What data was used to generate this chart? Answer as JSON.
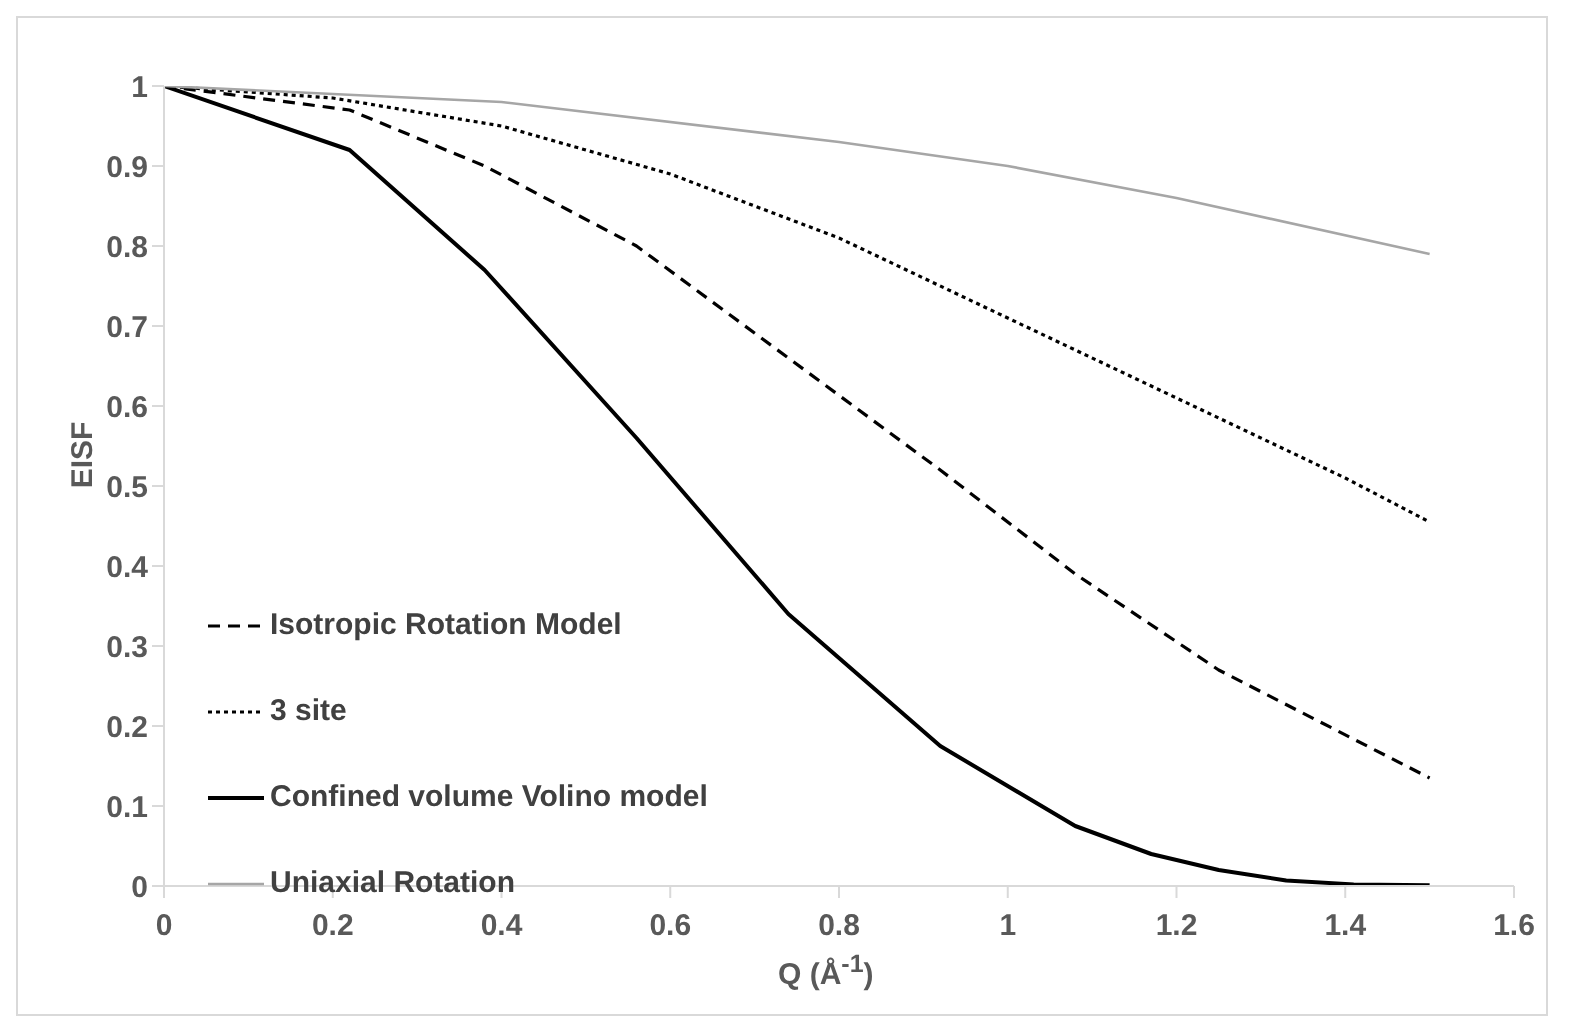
{
  "chart_data": {
    "type": "line",
    "xlabel": "Q (Å$^{-1}$)",
    "ylabel": "EISF",
    "xlim": [
      0,
      1.6
    ],
    "xticks": [
      0,
      0.2,
      0.4,
      0.6,
      0.8,
      1,
      1.2,
      1.4,
      1.6
    ],
    "ylim": [
      0,
      1
    ],
    "yticks": [
      0,
      0.1,
      0.2,
      0.3,
      0.4,
      0.5,
      0.6,
      0.7,
      0.8,
      0.9,
      1
    ],
    "grid": false,
    "legend": "bottom left",
    "marker": "none",
    "series": [
      {
        "name": "Isotropic Rotation Model",
        "color": "#000000",
        "line_style": "dashed",
        "x": [
          0,
          0.22,
          0.38,
          0.56,
          0.74,
          0.92,
          1.08,
          1.25,
          1.5
        ],
        "values": [
          1,
          0.97,
          0.9,
          0.8,
          0.66,
          0.52,
          0.39,
          0.27,
          0.135
        ]
      },
      {
        "name": "3 site",
        "color": "#000000",
        "line_style": "dotted",
        "x": [
          0,
          0.2,
          0.4,
          0.6,
          0.8,
          1.0,
          1.2,
          1.4,
          1.5
        ],
        "values": [
          1,
          0.985,
          0.95,
          0.89,
          0.81,
          0.71,
          0.61,
          0.51,
          0.455
        ]
      },
      {
        "name": "Confined volume Volino model",
        "color": "#000000",
        "line_style": "solid",
        "x": [
          0,
          0.22,
          0.38,
          0.56,
          0.74,
          0.92,
          1.08,
          1.17,
          1.25,
          1.33,
          1.41,
          1.5
        ],
        "values": [
          1,
          0.92,
          0.77,
          0.56,
          0.34,
          0.175,
          0.075,
          0.04,
          0.02,
          0.007,
          0.002,
          0.001
        ]
      },
      {
        "name": "Uniaxial Rotation",
        "color": "#a6a6a6",
        "line_style": "solid",
        "x": [
          0,
          0.4,
          0.8,
          1.0,
          1.2,
          1.5
        ],
        "values": [
          1,
          0.98,
          0.93,
          0.9,
          0.86,
          0.79
        ]
      }
    ]
  }
}
